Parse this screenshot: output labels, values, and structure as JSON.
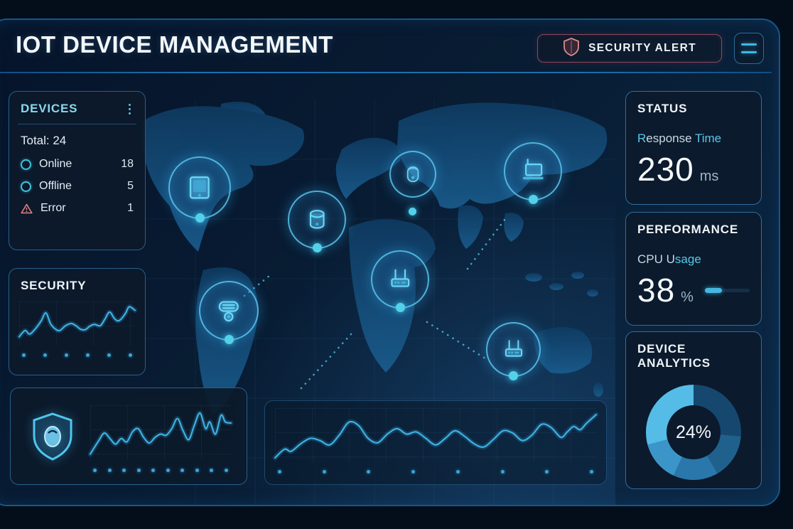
{
  "header": {
    "title": "IOT DEVICE MANAGEMENT",
    "security_alert_label": "SECURITY ALERT"
  },
  "devices_panel": {
    "title": "DEVICES",
    "total_label": "Total: 24",
    "rows": [
      {
        "label": "Online",
        "value": "18"
      },
      {
        "label": "Offline",
        "value": "5"
      },
      {
        "label": "Error",
        "value": "1"
      }
    ]
  },
  "security_panel": {
    "title": "SECURITY"
  },
  "status_panel": {
    "title": "STATUS",
    "metric_part_a": "R",
    "metric_part_b": "esponse ",
    "metric_part_c": "Time",
    "value": "230",
    "unit": "ms"
  },
  "performance_panel": {
    "title": "PERFORMANCE",
    "metric_part_a": "CPU U",
    "metric_part_b": "sage",
    "value": "38",
    "unit": "%"
  },
  "analytics_panel": {
    "title": "DEVICE ANALYTICS",
    "donut_center": "24%"
  },
  "map_devices": [
    {
      "type": "tablet"
    },
    {
      "type": "storage-hub"
    },
    {
      "type": "smart-pod"
    },
    {
      "type": "laptop"
    },
    {
      "type": "smart-speaker"
    },
    {
      "type": "router"
    },
    {
      "type": "router"
    }
  ],
  "colors": {
    "accent_cyan": "#56c8e8",
    "line_stroke": "#3fb0e2",
    "alert_red": "#d98c8c",
    "frame_blue": "#14578d"
  },
  "chart_data": {
    "security_trend": {
      "type": "line",
      "title": "SECURITY",
      "grid": true,
      "axis_labels": [],
      "points": [
        [
          0,
          80
        ],
        [
          5,
          66
        ],
        [
          9,
          74
        ],
        [
          14,
          62
        ],
        [
          19,
          44
        ],
        [
          23,
          26
        ],
        [
          27,
          50
        ],
        [
          31,
          62
        ],
        [
          35,
          66
        ],
        [
          40,
          55
        ],
        [
          45,
          50
        ],
        [
          49,
          55
        ],
        [
          53,
          63
        ],
        [
          57,
          64
        ],
        [
          61,
          56
        ],
        [
          65,
          52
        ],
        [
          70,
          55
        ],
        [
          74,
          40
        ],
        [
          78,
          24
        ],
        [
          82,
          38
        ],
        [
          85,
          44
        ],
        [
          88,
          40
        ],
        [
          92,
          26
        ],
        [
          95,
          12
        ],
        [
          100,
          20
        ]
      ]
    },
    "security_overview": {
      "type": "line",
      "title": "",
      "grid": true,
      "points": [
        [
          0,
          88
        ],
        [
          6,
          64
        ],
        [
          10,
          50
        ],
        [
          14,
          60
        ],
        [
          18,
          70
        ],
        [
          22,
          60
        ],
        [
          26,
          66
        ],
        [
          30,
          48
        ],
        [
          34,
          42
        ],
        [
          38,
          58
        ],
        [
          42,
          68
        ],
        [
          46,
          58
        ],
        [
          50,
          52
        ],
        [
          54,
          54
        ],
        [
          58,
          42
        ],
        [
          62,
          24
        ],
        [
          66,
          46
        ],
        [
          70,
          62
        ],
        [
          74,
          36
        ],
        [
          78,
          14
        ],
        [
          82,
          42
        ],
        [
          85,
          30
        ],
        [
          89,
          52
        ],
        [
          93,
          18
        ],
        [
          96,
          30
        ],
        [
          100,
          32
        ]
      ]
    },
    "network_activity": {
      "type": "line",
      "title": "",
      "grid": true,
      "points": [
        [
          0,
          92
        ],
        [
          3,
          76
        ],
        [
          5,
          80
        ],
        [
          8,
          66
        ],
        [
          11,
          56
        ],
        [
          14,
          60
        ],
        [
          17,
          68
        ],
        [
          20,
          50
        ],
        [
          23,
          26
        ],
        [
          26,
          32
        ],
        [
          29,
          56
        ],
        [
          32,
          64
        ],
        [
          35,
          48
        ],
        [
          38,
          38
        ],
        [
          41,
          48
        ],
        [
          44,
          44
        ],
        [
          47,
          56
        ],
        [
          50,
          68
        ],
        [
          53,
          56
        ],
        [
          56,
          42
        ],
        [
          59,
          52
        ],
        [
          62,
          66
        ],
        [
          65,
          72
        ],
        [
          68,
          58
        ],
        [
          71,
          42
        ],
        [
          74,
          46
        ],
        [
          77,
          60
        ],
        [
          80,
          50
        ],
        [
          83,
          30
        ],
        [
          86,
          36
        ],
        [
          89,
          54
        ],
        [
          91,
          44
        ],
        [
          93,
          34
        ],
        [
          95,
          40
        ],
        [
          97,
          28
        ],
        [
          100,
          12
        ]
      ]
    },
    "cpu_usage": {
      "type": "progress",
      "value": 38,
      "max": 100
    },
    "device_distribution": {
      "type": "donut",
      "center_label": "24%",
      "segments": [
        {
          "color": "#16486f",
          "deg": 95
        },
        {
          "color": "#20608d",
          "deg": 55
        },
        {
          "color": "#2a77ab",
          "deg": 55
        },
        {
          "color": "#3b95c9",
          "deg": 50
        },
        {
          "color": "#55bce8",
          "deg": 105
        }
      ]
    }
  }
}
